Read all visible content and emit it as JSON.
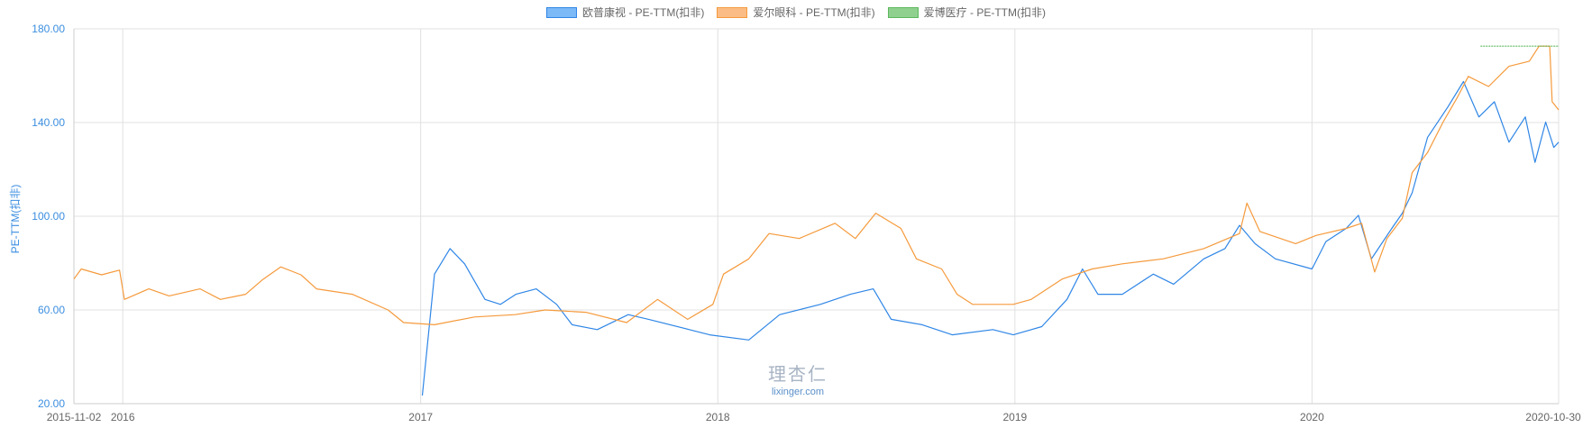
{
  "chart_data": {
    "type": "line",
    "title": "",
    "xlabel": "",
    "ylabel": "PE-TTM(扣非)",
    "xlim": [
      "2015-11-02",
      "2020-10-30"
    ],
    "ylim": [
      20,
      180
    ],
    "yticks": [
      "20.00",
      "60.00",
      "100.00",
      "140.00",
      "180.00"
    ],
    "ytick_values": [
      20,
      60,
      100,
      140,
      180
    ],
    "xticks": [
      {
        "label": "2015-11-02",
        "date": "2015-11-02"
      },
      {
        "label": "2016",
        "date": "2016-01-01"
      },
      {
        "label": "2017",
        "date": "2017-01-01"
      },
      {
        "label": "2018",
        "date": "2018-01-01"
      },
      {
        "label": "2019",
        "date": "2019-01-01"
      },
      {
        "label": "2020",
        "date": "2020-01-01"
      },
      {
        "label": "2020-10-30",
        "date": "2020-10-30"
      }
    ],
    "grid": true,
    "legend_position": "top-center",
    "series": [
      {
        "name": "欧普康视 - PE-TTM(扣非)",
        "color": "#2f86e6",
        "fill": "#7cb9f7",
        "points": [
          [
            "2017-01-03",
            23.5
          ],
          [
            "2017-01-18",
            75.3
          ],
          [
            "2017-02-06",
            86.2
          ],
          [
            "2017-02-24",
            79.7
          ],
          [
            "2017-03-21",
            64.5
          ],
          [
            "2017-04-09",
            62.4
          ],
          [
            "2017-04-28",
            66.7
          ],
          [
            "2017-05-23",
            69.0
          ],
          [
            "2017-06-17",
            62.4
          ],
          [
            "2017-07-06",
            53.7
          ],
          [
            "2017-08-06",
            51.6
          ],
          [
            "2017-09-13",
            58.0
          ],
          [
            "2017-10-08",
            56.0
          ],
          [
            "2017-11-27",
            51.6
          ],
          [
            "2017-12-22",
            49.4
          ],
          [
            "2018-02-08",
            47.2
          ],
          [
            "2018-03-18",
            58.0
          ],
          [
            "2018-05-07",
            62.4
          ],
          [
            "2018-06-13",
            66.7
          ],
          [
            "2018-07-11",
            69.0
          ],
          [
            "2018-08-02",
            56.0
          ],
          [
            "2018-09-09",
            53.7
          ],
          [
            "2018-10-16",
            49.4
          ],
          [
            "2018-12-05",
            51.6
          ],
          [
            "2018-12-30",
            49.4
          ],
          [
            "2019-02-03",
            52.9
          ],
          [
            "2019-03-06",
            64.5
          ],
          [
            "2019-03-25",
            77.5
          ],
          [
            "2019-04-13",
            66.7
          ],
          [
            "2019-05-13",
            66.7
          ],
          [
            "2019-06-20",
            75.3
          ],
          [
            "2019-07-15",
            71.0
          ],
          [
            "2019-08-21",
            81.8
          ],
          [
            "2019-09-16",
            86.2
          ],
          [
            "2019-10-04",
            96.1
          ],
          [
            "2019-10-23",
            88.3
          ],
          [
            "2019-11-17",
            81.8
          ],
          [
            "2020-01-01",
            77.5
          ],
          [
            "2020-01-18",
            89.2
          ],
          [
            "2020-02-12",
            94.8
          ],
          [
            "2020-02-27",
            100.4
          ],
          [
            "2020-03-14",
            81.8
          ],
          [
            "2020-04-08",
            94.8
          ],
          [
            "2020-04-21",
            101.3
          ],
          [
            "2020-05-03",
            110.0
          ],
          [
            "2020-05-22",
            133.7
          ],
          [
            "2020-06-16",
            146.7
          ],
          [
            "2020-07-05",
            157.5
          ],
          [
            "2020-07-24",
            142.4
          ],
          [
            "2020-08-12",
            148.9
          ],
          [
            "2020-08-30",
            131.6
          ],
          [
            "2020-09-19",
            142.4
          ],
          [
            "2020-10-01",
            123.0
          ],
          [
            "2020-10-14",
            140.2
          ],
          [
            "2020-10-24",
            129.4
          ],
          [
            "2020-10-30",
            131.6
          ]
        ]
      },
      {
        "name": "爱尔眼科 - PE-TTM(扣非)",
        "color": "#f59a3c",
        "fill": "#fbbd85",
        "points": [
          [
            "2015-11-02",
            73.2
          ],
          [
            "2015-11-11",
            77.5
          ],
          [
            "2015-12-06",
            75.0
          ],
          [
            "2015-12-28",
            77.0
          ],
          [
            "2016-01-03",
            64.5
          ],
          [
            "2016-02-02",
            69.0
          ],
          [
            "2016-02-27",
            66.0
          ],
          [
            "2016-04-05",
            69.0
          ],
          [
            "2016-04-30",
            64.5
          ],
          [
            "2016-05-31",
            66.7
          ],
          [
            "2016-06-21",
            73.0
          ],
          [
            "2016-07-13",
            78.4
          ],
          [
            "2016-08-07",
            75.0
          ],
          [
            "2016-08-26",
            69.0
          ],
          [
            "2016-10-09",
            66.7
          ],
          [
            "2016-11-22",
            60.0
          ],
          [
            "2016-12-11",
            54.6
          ],
          [
            "2017-01-18",
            53.7
          ],
          [
            "2017-03-08",
            57.0
          ],
          [
            "2017-04-27",
            58.0
          ],
          [
            "2017-06-03",
            60.0
          ],
          [
            "2017-07-23",
            59.0
          ],
          [
            "2017-09-11",
            54.6
          ],
          [
            "2017-10-19",
            64.5
          ],
          [
            "2017-11-25",
            56.0
          ],
          [
            "2017-12-26",
            62.4
          ],
          [
            "2018-01-08",
            75.3
          ],
          [
            "2018-02-08",
            81.8
          ],
          [
            "2018-03-05",
            92.6
          ],
          [
            "2018-04-11",
            90.5
          ],
          [
            "2018-05-25",
            97.0
          ],
          [
            "2018-06-19",
            90.5
          ],
          [
            "2018-07-14",
            101.3
          ],
          [
            "2018-08-14",
            94.8
          ],
          [
            "2018-09-02",
            81.8
          ],
          [
            "2018-10-03",
            77.5
          ],
          [
            "2018-10-22",
            66.7
          ],
          [
            "2018-11-10",
            62.4
          ],
          [
            "2018-12-30",
            62.4
          ],
          [
            "2019-01-21",
            64.5
          ],
          [
            "2019-02-28",
            73.2
          ],
          [
            "2019-04-06",
            77.5
          ],
          [
            "2019-05-13",
            79.7
          ],
          [
            "2019-07-02",
            81.8
          ],
          [
            "2019-08-21",
            86.2
          ],
          [
            "2019-10-04",
            92.6
          ],
          [
            "2019-10-13",
            105.6
          ],
          [
            "2019-10-29",
            93.5
          ],
          [
            "2019-12-12",
            88.3
          ],
          [
            "2020-01-06",
            91.8
          ],
          [
            "2020-02-12",
            94.8
          ],
          [
            "2020-03-02",
            97.0
          ],
          [
            "2020-03-18",
            76.2
          ],
          [
            "2020-04-02",
            90.5
          ],
          [
            "2020-04-21",
            99.1
          ],
          [
            "2020-05-03",
            118.6
          ],
          [
            "2020-05-22",
            127.2
          ],
          [
            "2020-06-10",
            140.2
          ],
          [
            "2020-06-28",
            151.0
          ],
          [
            "2020-07-11",
            159.7
          ],
          [
            "2020-08-05",
            155.4
          ],
          [
            "2020-08-30",
            164.0
          ],
          [
            "2020-09-24",
            166.2
          ],
          [
            "2020-10-06",
            172.6
          ],
          [
            "2020-10-19",
            172.6
          ],
          [
            "2020-10-22",
            148.9
          ],
          [
            "2020-10-30",
            145.4
          ]
        ]
      },
      {
        "name": "爱博医疗 - PE-TTM(扣非)",
        "color": "#5cb85c",
        "fill": "#8fd08f",
        "points": [
          [
            "2020-07-26",
            172.6
          ],
          [
            "2020-10-30",
            172.6
          ]
        ]
      }
    ]
  },
  "watermark": {
    "logo_text": "理杏仁",
    "site": "lixinger.com"
  }
}
